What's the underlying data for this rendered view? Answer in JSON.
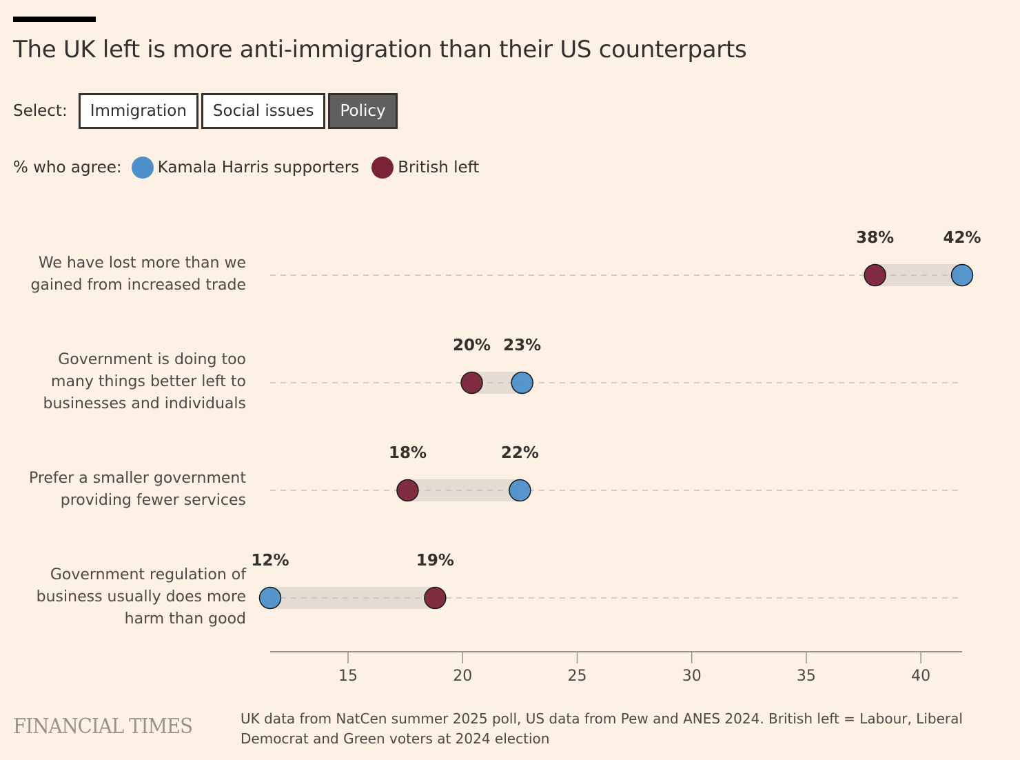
{
  "title": "The UK left is more anti-immigration than their US counterparts",
  "selector": {
    "label": "Select:",
    "options": [
      {
        "label": "Immigration",
        "active": false
      },
      {
        "label": "Social issues",
        "active": false
      },
      {
        "label": "Policy",
        "active": true
      }
    ]
  },
  "legend": {
    "label": "% who agree:",
    "items": [
      {
        "name": "Kamala Harris supporters",
        "color": "#4e8fcb"
      },
      {
        "name": "British left",
        "color": "#7a2238"
      }
    ]
  },
  "chart_data": {
    "type": "dot-range",
    "title": "The UK left is more anti-immigration than their US counterparts",
    "xlabel": "",
    "ylabel": "% who agree",
    "xlim": [
      11.6,
      41.8
    ],
    "xticks": [
      15,
      20,
      25,
      30,
      35,
      40
    ],
    "grid": false,
    "legend_position": "top-left",
    "series": [
      {
        "name": "Kamala Harris supporters",
        "color": "#4e8fcb"
      },
      {
        "name": "British left",
        "color": "#7a2238"
      }
    ],
    "categories": [
      "We have lost more than we gained from increased trade",
      "Government is doing too many things better left to businesses and individuals",
      "Prefer a smaller government providing fewer services",
      "Government regulation of business usually does more harm than good"
    ],
    "rows": [
      {
        "label_lines": [
          "We have lost more than we",
          "gained from increased trade"
        ],
        "harris": 41.8,
        "harris_label": "42%",
        "british": 38.0,
        "british_label": "38%"
      },
      {
        "label_lines": [
          "Government is doing too",
          "many things better left to",
          "businesses and individuals"
        ],
        "harris": 22.6,
        "harris_label": "23%",
        "british": 20.4,
        "british_label": "20%"
      },
      {
        "label_lines": [
          "Prefer a smaller government",
          "providing fewer services"
        ],
        "harris": 22.5,
        "harris_label": "22%",
        "british": 17.6,
        "british_label": "18%"
      },
      {
        "label_lines": [
          "Government regulation of",
          "business usually does more",
          "harm than good"
        ],
        "harris": 11.6,
        "harris_label": "12%",
        "british": 18.8,
        "british_label": "19%"
      }
    ]
  },
  "footer": {
    "logo": "FINANCIAL TIMES",
    "note": "UK data from NatCen summer 2025 poll, US data from Pew and ANES 2024. British left = Labour, Liberal Democrat and Green voters at 2024 election"
  }
}
